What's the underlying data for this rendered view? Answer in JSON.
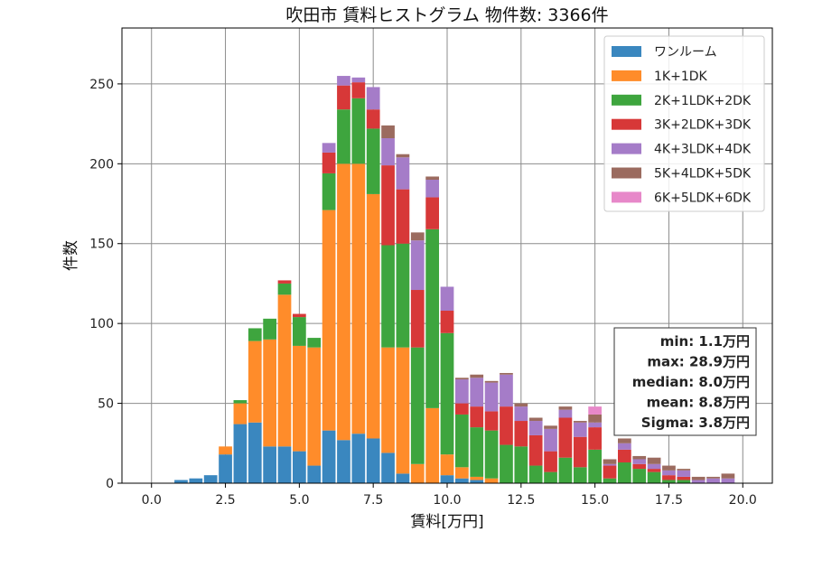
{
  "chart_data": {
    "type": "bar",
    "stacked": true,
    "title": "吹田市 賃料ヒストグラム 物件数: 3366件",
    "xlabel": "賃料[万円]",
    "ylabel": "件数",
    "xlim": [
      -1.0,
      21.0
    ],
    "ylim": [
      0,
      285
    ],
    "xticks": [
      0.0,
      2.5,
      5.0,
      7.5,
      10.0,
      12.5,
      15.0,
      17.5,
      20.0
    ],
    "xtick_labels": [
      "0.0",
      "2.5",
      "5.0",
      "7.5",
      "10.0",
      "12.5",
      "15.0",
      "17.5",
      "20.0"
    ],
    "yticks": [
      0,
      50,
      100,
      150,
      200,
      250
    ],
    "ytick_labels": [
      "0",
      "50",
      "100",
      "150",
      "200",
      "250"
    ],
    "grid": true,
    "legend_position": "top-right",
    "bin_width": 0.5,
    "x": [
      1.0,
      1.5,
      2.0,
      2.5,
      3.0,
      3.5,
      4.0,
      4.5,
      5.0,
      5.5,
      6.0,
      6.5,
      7.0,
      7.5,
      8.0,
      8.5,
      9.0,
      9.5,
      10.0,
      10.5,
      11.0,
      11.5,
      12.0,
      12.5,
      13.0,
      13.5,
      14.0,
      14.5,
      15.0,
      15.5,
      16.0,
      16.5,
      17.0,
      17.5,
      18.0,
      18.5,
      19.0,
      19.5
    ],
    "series": [
      {
        "name": "ワンルーム",
        "color": "#3a87bf",
        "values": [
          2,
          3,
          5,
          18,
          37,
          38,
          23,
          23,
          20,
          11,
          33,
          27,
          31,
          28,
          19,
          6,
          0,
          0,
          5,
          3,
          2,
          0,
          0,
          0,
          0,
          0,
          0,
          0,
          0,
          0,
          0,
          0,
          0,
          0,
          0,
          0,
          0,
          0
        ]
      },
      {
        "name": "1K+1DK",
        "color": "#ff8c2a",
        "values": [
          0,
          0,
          0,
          5,
          13,
          51,
          67,
          95,
          66,
          74,
          138,
          173,
          169,
          153,
          66,
          79,
          12,
          47,
          13,
          7,
          2,
          3,
          0,
          0,
          0,
          0,
          0,
          0,
          0,
          0,
          0,
          0,
          0,
          0,
          0,
          0,
          0,
          0
        ]
      },
      {
        "name": "2K+1LDK+2DK",
        "color": "#3ea53e",
        "values": [
          0,
          0,
          0,
          0,
          2,
          8,
          13,
          7,
          18,
          6,
          23,
          34,
          41,
          41,
          64,
          65,
          73,
          112,
          76,
          33,
          31,
          30,
          24,
          23,
          11,
          7,
          16,
          10,
          21,
          3,
          13,
          9,
          7,
          2,
          2,
          0,
          0,
          0
        ]
      },
      {
        "name": "3K+2LDK+3DK",
        "color": "#d73838",
        "values": [
          0,
          0,
          0,
          0,
          0,
          0,
          0,
          2,
          2,
          0,
          13,
          15,
          10,
          12,
          50,
          34,
          36,
          20,
          14,
          7,
          13,
          12,
          24,
          16,
          19,
          13,
          25,
          19,
          14,
          8,
          8,
          3,
          2,
          3,
          2,
          0,
          0,
          0
        ]
      },
      {
        "name": "4K+3LDK+4DK",
        "color": "#a57cc8",
        "values": [
          0,
          0,
          0,
          0,
          0,
          0,
          0,
          0,
          0,
          0,
          6,
          6,
          3,
          14,
          17,
          20,
          31,
          11,
          15,
          15,
          18,
          18,
          20,
          9,
          9,
          14,
          5,
          9,
          3,
          1,
          4,
          3,
          3,
          3,
          4,
          2,
          3,
          3
        ]
      },
      {
        "name": "5K+4LDK+5DK",
        "color": "#9b6b5f",
        "values": [
          0,
          0,
          0,
          0,
          0,
          0,
          0,
          0,
          0,
          0,
          0,
          0,
          0,
          0,
          8,
          2,
          5,
          2,
          0,
          1,
          2,
          1,
          1,
          2,
          2,
          2,
          2,
          1,
          5,
          3,
          3,
          2,
          4,
          3,
          1,
          2,
          1,
          3
        ]
      },
      {
        "name": "6K+5LDK+6DK",
        "color": "#e788c9",
        "values": [
          0,
          0,
          0,
          0,
          0,
          0,
          0,
          0,
          0,
          0,
          0,
          0,
          0,
          0,
          0,
          0,
          0,
          0,
          0,
          0,
          0,
          0,
          0,
          0,
          0,
          0,
          0,
          0,
          5,
          0,
          0,
          0,
          0,
          0,
          0,
          0,
          0,
          0
        ]
      }
    ],
    "stats": [
      "min: 1.1万円",
      "max: 28.9万円",
      "median: 8.0万円",
      "mean: 8.8万円",
      "Sigma: 3.8万円"
    ]
  }
}
